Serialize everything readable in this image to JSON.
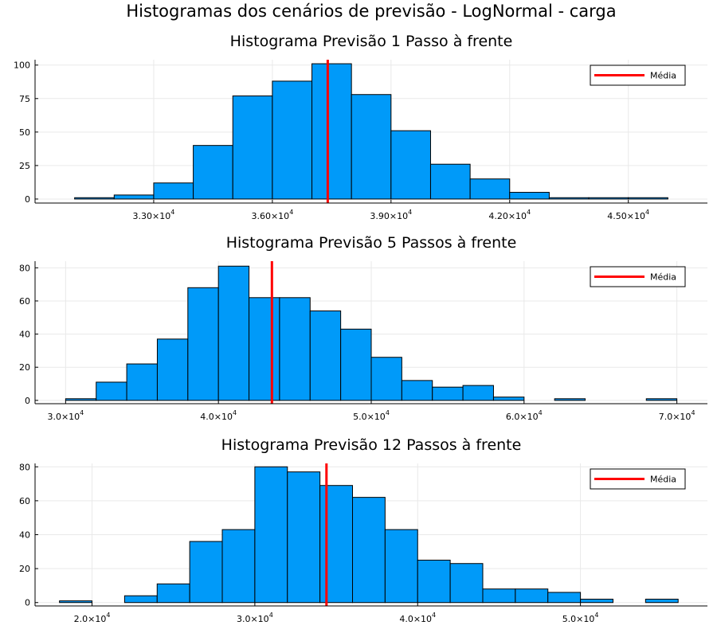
{
  "figure_title": "Histogramas dos cenários de previsão - LogNormal - carga",
  "colors": {
    "bar": "#009af9",
    "mean": "#ff0000",
    "grid": "#e9e9e9"
  },
  "chart_data": [
    {
      "type": "bar",
      "title": "Histograma Previsão 1 Passo à frente",
      "bin_edges": [
        31000,
        32000,
        33000,
        34000,
        35000,
        36000,
        37000,
        38000,
        39000,
        40000,
        41000,
        42000,
        43000,
        44000,
        45000,
        46000
      ],
      "values": [
        1,
        3,
        12,
        40,
        77,
        88,
        101,
        78,
        51,
        26,
        15,
        5,
        1,
        1,
        1
      ],
      "mean": 37400,
      "legend": "Média",
      "legend_position": "top-right",
      "xlim": [
        30000,
        47000
      ],
      "ylim": [
        -3,
        104
      ],
      "xticks": [
        {
          "v": 33000,
          "m": "3.30×10",
          "e": "4"
        },
        {
          "v": 36000,
          "m": "3.60×10",
          "e": "4"
        },
        {
          "v": 39000,
          "m": "3.90×10",
          "e": "4"
        },
        {
          "v": 42000,
          "m": "4.20×10",
          "e": "4"
        },
        {
          "v": 45000,
          "m": "4.50×10",
          "e": "4"
        }
      ],
      "yticks": [
        {
          "v": 0,
          "label": "0"
        },
        {
          "v": 25,
          "label": "25"
        },
        {
          "v": 50,
          "label": "50"
        },
        {
          "v": 75,
          "label": "75"
        },
        {
          "v": 100,
          "label": "100"
        }
      ],
      "grid": true
    },
    {
      "type": "bar",
      "title": "Histograma Previsão 5 Passos à frente",
      "bin_edges": [
        30000,
        32000,
        34000,
        36000,
        38000,
        40000,
        42000,
        44000,
        46000,
        48000,
        50000,
        52000,
        54000,
        56000,
        58000,
        60000,
        62000,
        64000,
        66000,
        68000,
        70000
      ],
      "values": [
        1,
        11,
        22,
        37,
        68,
        81,
        62,
        62,
        54,
        43,
        26,
        12,
        8,
        9,
        2,
        0,
        1,
        0,
        0,
        1
      ],
      "mean": 43500,
      "legend": "Média",
      "legend_position": "top-right",
      "xlim": [
        28000,
        72000
      ],
      "ylim": [
        -2,
        84
      ],
      "xticks": [
        {
          "v": 30000,
          "m": "3.0×10",
          "e": "4"
        },
        {
          "v": 40000,
          "m": "4.0×10",
          "e": "4"
        },
        {
          "v": 50000,
          "m": "5.0×10",
          "e": "4"
        },
        {
          "v": 60000,
          "m": "6.0×10",
          "e": "4"
        },
        {
          "v": 70000,
          "m": "7.0×10",
          "e": "4"
        }
      ],
      "yticks": [
        {
          "v": 0,
          "label": "0"
        },
        {
          "v": 20,
          "label": "20"
        },
        {
          "v": 40,
          "label": "40"
        },
        {
          "v": 60,
          "label": "60"
        },
        {
          "v": 80,
          "label": "80"
        }
      ],
      "grid": true
    },
    {
      "type": "bar",
      "title": "Histograma Previsão 12 Passos à frente",
      "bin_edges": [
        18000,
        20000,
        22000,
        24000,
        26000,
        28000,
        30000,
        32000,
        34000,
        36000,
        38000,
        40000,
        42000,
        44000,
        46000,
        48000,
        50000,
        52000,
        54000,
        56000
      ],
      "values": [
        1,
        0,
        4,
        11,
        36,
        43,
        80,
        77,
        69,
        62,
        43,
        25,
        23,
        8,
        8,
        6,
        2,
        0,
        2
      ],
      "mean": 34400,
      "legend": "Média",
      "legend_position": "top-right",
      "xlim": [
        16500,
        57800
      ],
      "ylim": [
        -2,
        82
      ],
      "xticks": [
        {
          "v": 20000,
          "m": "2.0×10",
          "e": "4"
        },
        {
          "v": 30000,
          "m": "3.0×10",
          "e": "4"
        },
        {
          "v": 40000,
          "m": "4.0×10",
          "e": "4"
        },
        {
          "v": 50000,
          "m": "5.0×10",
          "e": "4"
        }
      ],
      "yticks": [
        {
          "v": 0,
          "label": "0"
        },
        {
          "v": 20,
          "label": "20"
        },
        {
          "v": 40,
          "label": "40"
        },
        {
          "v": 60,
          "label": "60"
        },
        {
          "v": 80,
          "label": "80"
        }
      ],
      "grid": true
    }
  ]
}
